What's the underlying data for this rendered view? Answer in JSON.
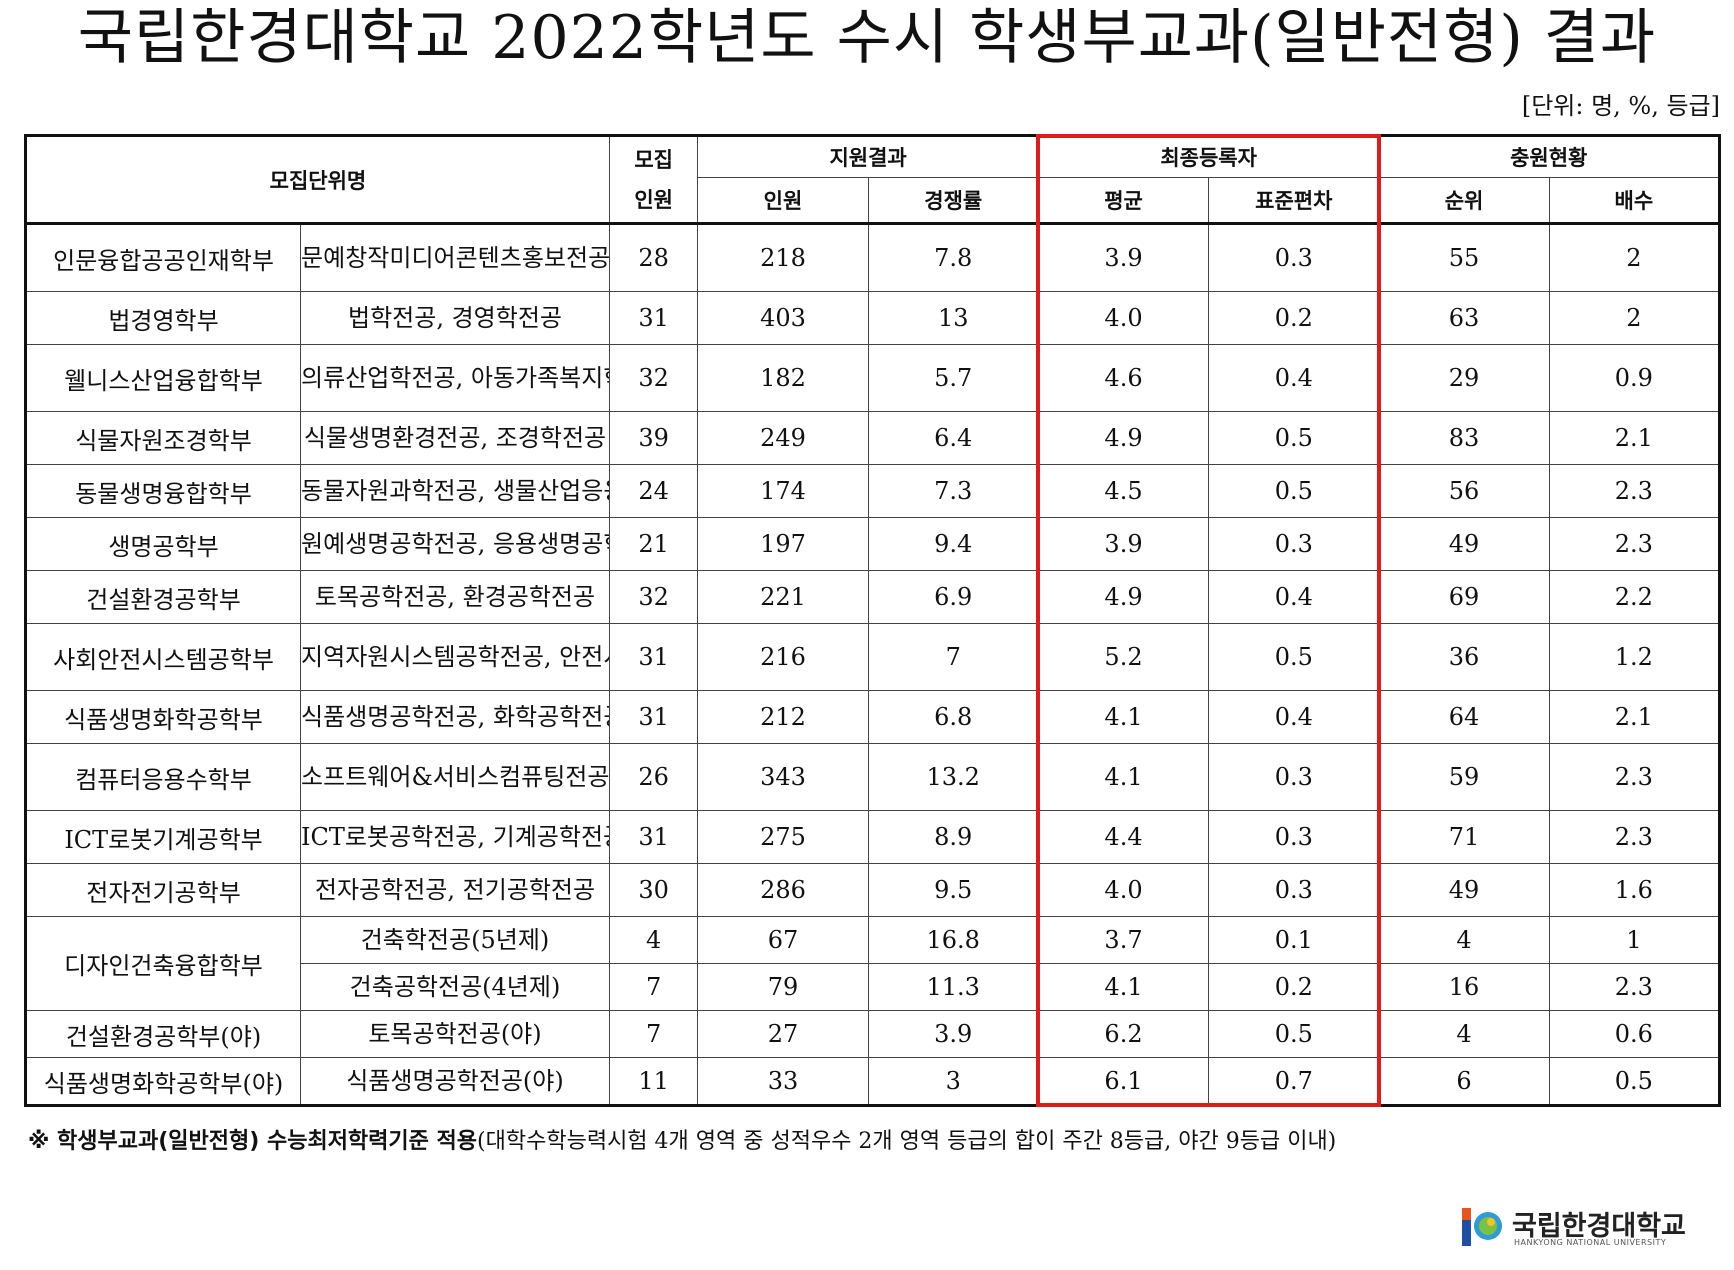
{
  "title": "국립한경대학교 2022학년도 수시 학생부교과(일반전형) 결과",
  "unit_note": "[단위: 명, %, 등급]",
  "headers": {
    "unit_name": "모집단위명",
    "recruit_top": "모집",
    "recruit_bottom": "인원",
    "apply_group": "지원결과",
    "apply_count": "인원",
    "competition": "경쟁률",
    "final_group": "최종등록자",
    "average": "평균",
    "std_dev": "표준편차",
    "extra_group": "충원현황",
    "rank": "순위",
    "multiple": "배수"
  },
  "rows": [
    {
      "unit": "인문융합공공인재학부",
      "major": "문예창작미디어콘텐츠홍보전공, 영미언어문학전공, 공공행정전공",
      "recruit": "28",
      "applicants": "218",
      "competition": "7.8",
      "avg": "3.9",
      "std": "0.3",
      "rank": "55",
      "multiple": "2"
    },
    {
      "unit": "법경영학부",
      "major": "법학전공, 경영학전공",
      "recruit": "31",
      "applicants": "403",
      "competition": "13",
      "avg": "4.0",
      "std": "0.2",
      "rank": "63",
      "multiple": "2"
    },
    {
      "unit": "웰니스산업융합학부",
      "major": "의류산업학전공, 아동가족복지학전공, 식품영양학전공, 웰니스스포츠과학전공",
      "recruit": "32",
      "applicants": "182",
      "competition": "5.7",
      "avg": "4.6",
      "std": "0.4",
      "rank": "29",
      "multiple": "0.9"
    },
    {
      "unit": "식물자원조경학부",
      "major": "식물생명환경전공, 조경학전공",
      "recruit": "39",
      "applicants": "249",
      "competition": "6.4",
      "avg": "4.9",
      "std": "0.5",
      "rank": "83",
      "multiple": "2.1"
    },
    {
      "unit": "동물생명융합학부",
      "major": "동물자원과학전공, 생물산업응용전공",
      "recruit": "24",
      "applicants": "174",
      "competition": "7.3",
      "avg": "4.5",
      "std": "0.5",
      "rank": "56",
      "multiple": "2.3"
    },
    {
      "unit": "생명공학부",
      "major": "원예생명공학전공, 응용생명공학전공",
      "recruit": "21",
      "applicants": "197",
      "competition": "9.4",
      "avg": "3.9",
      "std": "0.3",
      "rank": "49",
      "multiple": "2.3"
    },
    {
      "unit": "건설환경공학부",
      "major": "토목공학전공, 환경공학전공",
      "recruit": "32",
      "applicants": "221",
      "competition": "6.9",
      "avg": "4.9",
      "std": "0.4",
      "rank": "69",
      "multiple": "2.2"
    },
    {
      "unit": "사회안전시스템공학부",
      "major": "지역자원시스템공학전공, 안전시스템공학전공",
      "recruit": "31",
      "applicants": "216",
      "competition": "7",
      "avg": "5.2",
      "std": "0.5",
      "rank": "36",
      "multiple": "1.2"
    },
    {
      "unit": "식품생명화학공학부",
      "major": "식품생명공학전공, 화학공학전공",
      "recruit": "31",
      "applicants": "212",
      "competition": "6.8",
      "avg": "4.1",
      "std": "0.4",
      "rank": "64",
      "multiple": "2.1"
    },
    {
      "unit": "컴퓨터응용수학부",
      "major": "소프트웨어&서비스컴퓨팅전공, 소프트웨어융합전공, 응용수학전공",
      "recruit": "26",
      "applicants": "343",
      "competition": "13.2",
      "avg": "4.1",
      "std": "0.3",
      "rank": "59",
      "multiple": "2.3"
    },
    {
      "unit": "ICT로봇기계공학부",
      "major": "ICT로봇공학전공, 기계공학전공",
      "recruit": "31",
      "applicants": "275",
      "competition": "8.9",
      "avg": "4.4",
      "std": "0.3",
      "rank": "71",
      "multiple": "2.3"
    },
    {
      "unit": "전자전기공학부",
      "major": "전자공학전공, 전기공학전공",
      "recruit": "30",
      "applicants": "286",
      "competition": "9.5",
      "avg": "4.0",
      "std": "0.3",
      "rank": "49",
      "multiple": "1.6"
    }
  ],
  "design_group": {
    "unit": "디자인건축융합학부",
    "subrows": [
      {
        "major": "건축학전공(5년제)",
        "recruit": "4",
        "applicants": "67",
        "competition": "16.8",
        "avg": "3.7",
        "std": "0.1",
        "rank": "4",
        "multiple": "1"
      },
      {
        "major": "건축공학전공(4년제)",
        "recruit": "7",
        "applicants": "79",
        "competition": "11.3",
        "avg": "4.1",
        "std": "0.2",
        "rank": "16",
        "multiple": "2.3"
      }
    ]
  },
  "night_rows": [
    {
      "unit": "건설환경공학부(야)",
      "major": "토목공학전공(야)",
      "recruit": "7",
      "applicants": "27",
      "competition": "3.9",
      "avg": "6.2",
      "std": "0.5",
      "rank": "4",
      "multiple": "0.6"
    },
    {
      "unit": "식품생명화학공학부(야)",
      "major": "식품생명공학전공(야)",
      "recruit": "11",
      "applicants": "33",
      "competition": "3",
      "avg": "6.1",
      "std": "0.7",
      "rank": "6",
      "multiple": "0.5"
    }
  ],
  "footnote": {
    "bold": "※ 학생부교과(일반전형) 수능최저학력기준 적용",
    "rest": "(대학수학능력시험 4개 영역 중 성적우수 2개 영역 등급의 합이 주간 8등급, 야간 9등급 이내)"
  },
  "logo": {
    "text": "국립한경대학교",
    "sub": "HANKYONG NATIONAL UNIVERSITY"
  },
  "colors": {
    "highlight_box": "#e01b1b"
  }
}
